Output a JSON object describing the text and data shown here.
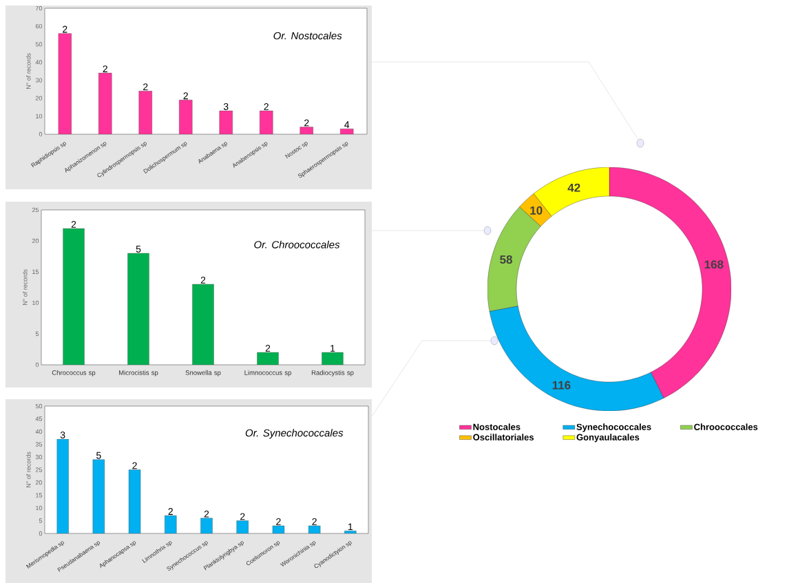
{
  "chart_data": [
    {
      "type": "bar",
      "title": "Or. Nostocales",
      "ylabel": "N° of records",
      "categories": [
        "Raphidiopsis sp",
        "Aphanizomenon sp",
        "Cylindrospermopsis sp",
        "Dolichospermum sp",
        "Anabaena sp",
        "Anabenopsis sp",
        "Nostoc sp",
        "Sphaerospermopsis sp"
      ],
      "values": [
        56,
        34,
        24,
        19,
        13,
        13,
        4,
        3
      ],
      "color": "#ff3399",
      "ylim": [
        0,
        70
      ],
      "yticks": [
        0,
        10,
        20,
        30,
        40,
        50,
        60,
        70
      ],
      "annotations": [
        {
          "text": "2",
          "x": "Raphidiopsis sp",
          "y": 56
        },
        {
          "text": "2",
          "x": "Aphanizomenon sp",
          "y": 34
        },
        {
          "text": "2",
          "x": "Cylindrospermopsis sp",
          "y": 24
        },
        {
          "text": "2",
          "x": "Dolichospermum sp",
          "y": 19
        },
        {
          "text": "3",
          "x": "Anabaena sp",
          "y": 13
        },
        {
          "text": "2",
          "x": "Anabenopsis sp",
          "y": 13
        },
        {
          "text": "2",
          "x": "Nostoc sp",
          "y": 4
        },
        {
          "text": "4",
          "x": "Sphaerospermopsis sp",
          "y": 3
        }
      ]
    },
    {
      "type": "bar",
      "title": "Or. Chroococcales",
      "ylabel": "N° of records",
      "categories": [
        "Chrococcus sp",
        "Microcistis sp",
        "Snowella sp",
        "Limnococcus sp",
        "Radiocystis sp"
      ],
      "values": [
        22,
        18,
        13,
        2,
        2
      ],
      "color": "#00b050",
      "ylim": [
        0,
        25
      ],
      "yticks": [
        0,
        5,
        10,
        15,
        20,
        25
      ],
      "annotations": [
        {
          "text": "2",
          "x": "Chrococcus sp",
          "y": 22
        },
        {
          "text": "5",
          "x": "Microcistis sp",
          "y": 18
        },
        {
          "text": "2",
          "x": "Snowella sp",
          "y": 13
        },
        {
          "text": "2",
          "x": "Limnococcus sp",
          "y": 2
        },
        {
          "text": "1",
          "x": "Radiocystis sp",
          "y": 2
        }
      ]
    },
    {
      "type": "bar",
      "title": "Or. Synechococcales",
      "ylabel": "N° of records",
      "categories": [
        "Merismopedia sp",
        "Pseudanabaena sp",
        "Aphanocapsa sp",
        "Limnothrix sp",
        "Synechococcus sp",
        "Planktolyngbya sp",
        "Coelomoron sp",
        "Woronichinia sp",
        "Cyanodictyion sp"
      ],
      "values": [
        37,
        29,
        25,
        7,
        6,
        5,
        3,
        3,
        1
      ],
      "color": "#00b0f0",
      "ylim": [
        0,
        50
      ],
      "yticks": [
        0,
        5,
        10,
        15,
        20,
        25,
        30,
        35,
        40,
        45,
        50
      ],
      "annotations": [
        {
          "text": "3",
          "x": "Merismopedia sp",
          "y": 37
        },
        {
          "text": "5",
          "x": "Pseudanabaena sp",
          "y": 29
        },
        {
          "text": "2",
          "x": "Aphanocapsa sp",
          "y": 25
        },
        {
          "text": "2",
          "x": "Limnothrix sp",
          "y": 7
        },
        {
          "text": "2",
          "x": "Synechococcus sp",
          "y": 6
        },
        {
          "text": "2",
          "x": "Planktolyngbya sp",
          "y": 5
        },
        {
          "text": "2",
          "x": "Coelomoron sp",
          "y": 3
        },
        {
          "text": "2",
          "x": "Woronichinia sp",
          "y": 3
        },
        {
          "text": "1",
          "x": "Cyanodictyion sp",
          "y": 1
        }
      ]
    },
    {
      "type": "donut",
      "categories": [
        "Nostocales",
        "Synechococcales",
        "Chroococcales",
        "Oscillatoriales",
        "Gonyaulacales"
      ],
      "values": [
        168,
        116,
        58,
        10,
        42
      ],
      "colors": [
        "#ff3399",
        "#00b0f0",
        "#92d050",
        "#ffc000",
        "#ffff00"
      ],
      "data_labels": true,
      "legend": "bottom"
    }
  ]
}
